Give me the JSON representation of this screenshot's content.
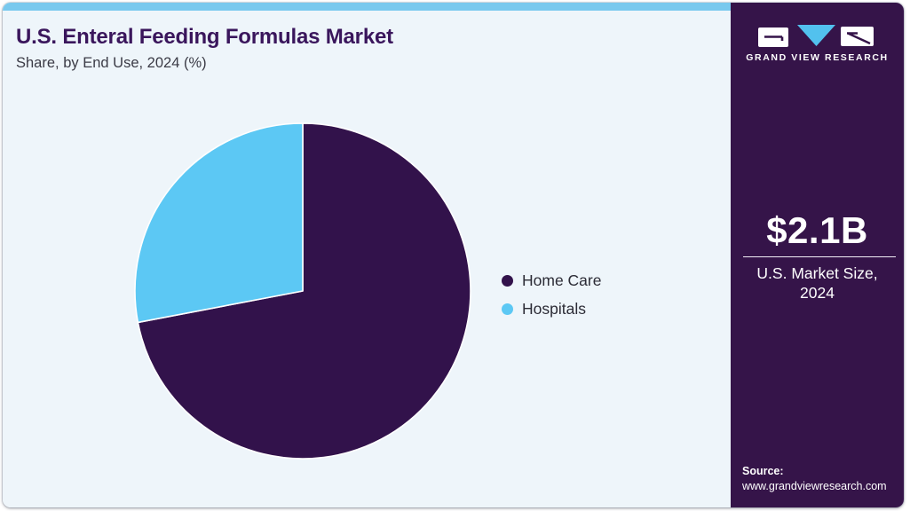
{
  "page": {
    "accent_bar_color": "#79c9ee",
    "main_bg_color": "#eef5fa",
    "sidebar_bg_color": "#351449",
    "title_color": "#3a165c"
  },
  "header": {
    "title": "U.S. Enteral Feeding Formulas Market",
    "subtitle": "Share, by End Use, 2024 (%)"
  },
  "chart_data": {
    "type": "pie",
    "title": "U.S. Enteral Feeding Formulas Market Share, by End Use, 2024 (%)",
    "labels": [
      "Home Care",
      "Hospitals"
    ],
    "values": [
      72,
      28
    ],
    "colors": [
      "#32124b",
      "#5cc8f4"
    ],
    "start_angle": "top",
    "direction": "clockwise",
    "legend_position": "right",
    "data_labels_shown": false
  },
  "sidebar": {
    "brand_name": "GRAND VIEW RESEARCH",
    "market_size_value": "$2.1B",
    "market_size_caption": "U.S. Market Size, 2024",
    "source_label": "Source:",
    "source_url": "www.grandviewresearch.com"
  }
}
